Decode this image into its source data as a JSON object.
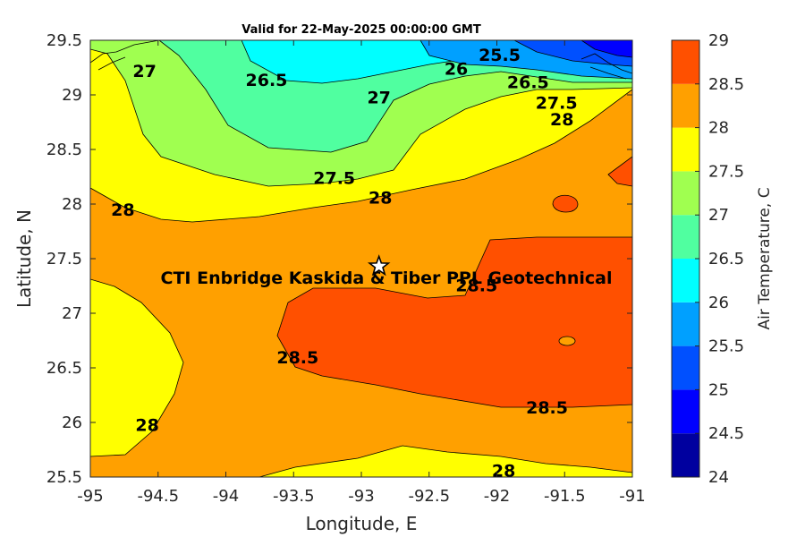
{
  "chart_data": {
    "type": "contour",
    "title": "Valid for 22-May-2025 00:00:00 GMT",
    "xlabel": "Longitude, E",
    "ylabel": "Latitude, N",
    "xlim": [
      -95,
      -91
    ],
    "ylim": [
      25.5,
      29.5
    ],
    "x_ticks": [
      "-95",
      "-94.5",
      "-94",
      "-93.5",
      "-93",
      "-92.5",
      "-92",
      "-91.5",
      "-91"
    ],
    "y_ticks": [
      "25.5",
      "26",
      "26.5",
      "27",
      "27.5",
      "28",
      "28.5",
      "29",
      "29.5"
    ],
    "colorbar": {
      "label": "Air Temperature, C",
      "range": [
        24,
        29
      ],
      "levels": [
        24,
        24.5,
        25,
        25.5,
        26,
        26.5,
        27,
        27.5,
        28,
        28.5,
        29
      ],
      "tick_labels": [
        "24",
        "24.5",
        "25",
        "25.5",
        "26",
        "26.5",
        "27",
        "27.5",
        "28",
        "28.5",
        "29"
      ],
      "colors": [
        "#00009f",
        "#0000ff",
        "#0050ff",
        "#00a0ff",
        "#00ffff",
        "#50ffa0",
        "#a0ff50",
        "#ffff00",
        "#ffa000",
        "#ff5000",
        "#ff0000"
      ]
    },
    "contour_labels": [
      {
        "text": "27",
        "lon": -94.6,
        "lat": 29.22
      },
      {
        "text": "26.5",
        "lon": -93.7,
        "lat": 29.14
      },
      {
        "text": "26",
        "lon": -92.3,
        "lat": 29.24
      },
      {
        "text": "25.5",
        "lon": -91.98,
        "lat": 29.37
      },
      {
        "text": "26.5",
        "lon": -91.77,
        "lat": 29.12
      },
      {
        "text": "27",
        "lon": -92.87,
        "lat": 28.98
      },
      {
        "text": "27.5",
        "lon": -91.56,
        "lat": 28.93
      },
      {
        "text": "28",
        "lon": -91.52,
        "lat": 28.78
      },
      {
        "text": "27.5",
        "lon": -93.2,
        "lat": 28.24
      },
      {
        "text": "28",
        "lon": -92.86,
        "lat": 28.06
      },
      {
        "text": "28",
        "lon": -94.76,
        "lat": 27.95
      },
      {
        "text": "28.5",
        "lon": -92.15,
        "lat": 27.26
      },
      {
        "text": "28.5",
        "lon": -93.47,
        "lat": 26.6
      },
      {
        "text": "28.5",
        "lon": -91.63,
        "lat": 26.14
      },
      {
        "text": "28",
        "lon": -94.58,
        "lat": 25.98
      },
      {
        "text": "28",
        "lon": -91.95,
        "lat": 25.56
      }
    ],
    "site": {
      "name": "CTI Enbridge  Kaskida & Tiber PPL Geotechnical",
      "lon": -92.87,
      "lat": 27.43,
      "marker": "star"
    }
  }
}
